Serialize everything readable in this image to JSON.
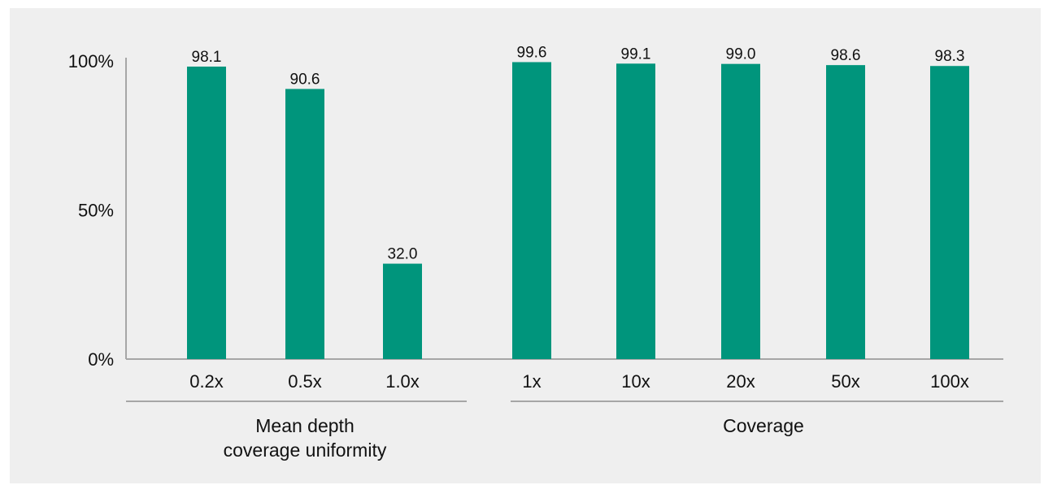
{
  "chart_data": {
    "type": "bar",
    "ylim": [
      0,
      100
    ],
    "yticks": [
      "0%",
      "50%",
      "100%"
    ],
    "ytick_values": [
      0,
      50,
      100
    ],
    "bar_color": "#00957c",
    "groups": [
      {
        "label_lines": [
          "Mean depth",
          "coverage uniformity"
        ],
        "categories": [
          "0.2x",
          "0.5x",
          "1.0x"
        ],
        "values": [
          98.1,
          90.6,
          32.0
        ],
        "labels": [
          "98.1",
          "90.6",
          "32.0"
        ]
      },
      {
        "label_lines": [
          "Coverage"
        ],
        "categories": [
          "1x",
          "10x",
          "20x",
          "50x",
          "100x"
        ],
        "values": [
          99.6,
          99.1,
          99.0,
          98.6,
          98.3
        ],
        "labels": [
          "99.6",
          "99.1",
          "99.0",
          "98.6",
          "98.3"
        ]
      }
    ]
  }
}
